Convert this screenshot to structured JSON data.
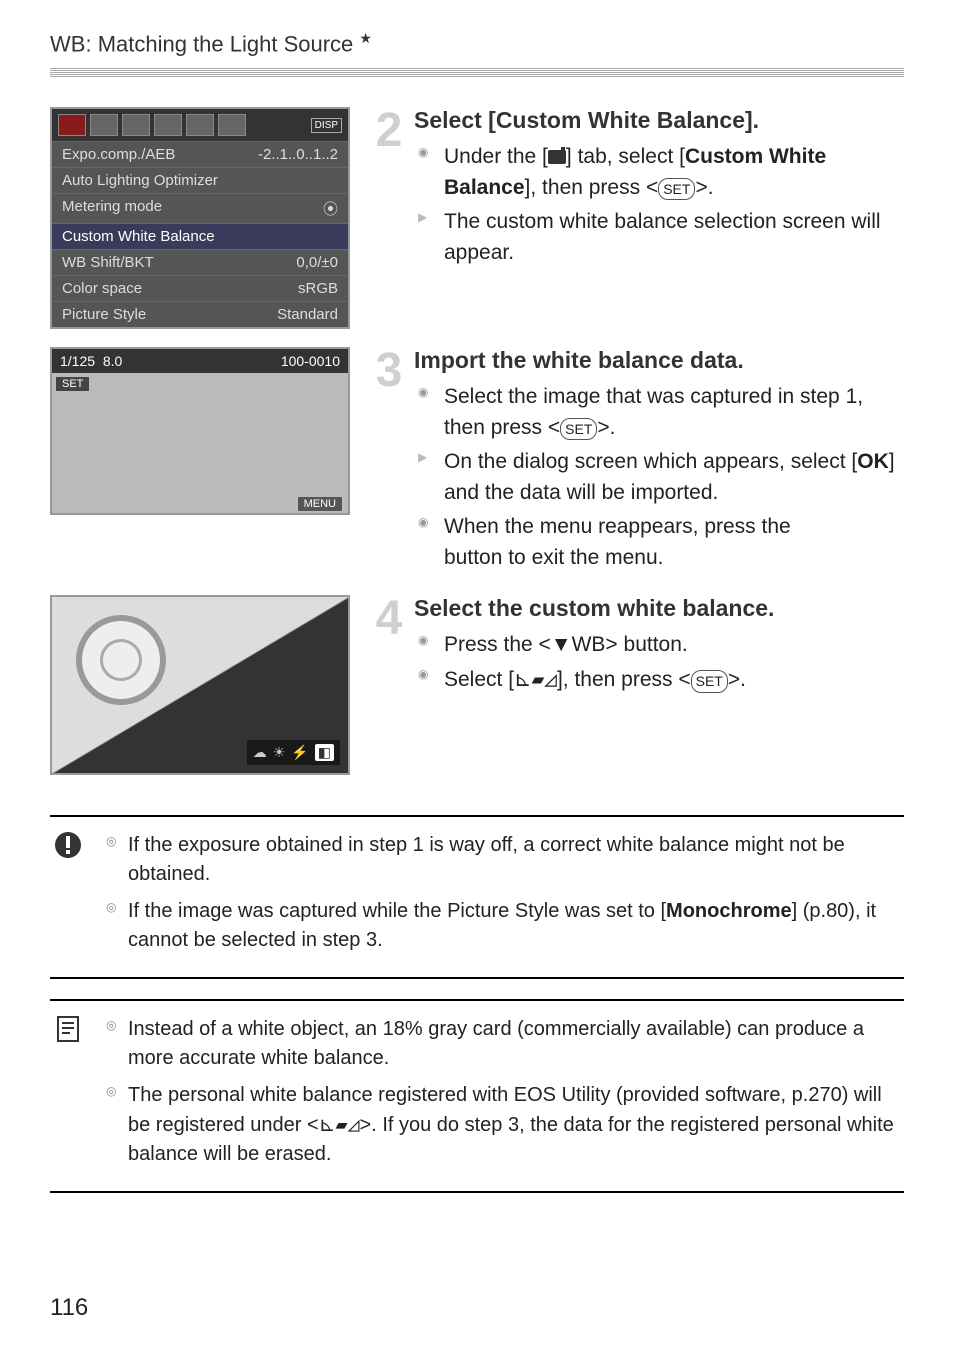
{
  "header": {
    "prefix": "WB",
    "title": "Matching the Light Source",
    "star": "★"
  },
  "menu_screenshot": {
    "tabs_disp": "DISP",
    "rows": [
      {
        "label": "Expo.comp./AEB",
        "value": "-2..1..0..1..2"
      },
      {
        "label": "Auto Lighting Optimizer",
        "value": ""
      },
      {
        "label": "Metering mode",
        "value": "⦿"
      },
      {
        "label": "Custom White Balance",
        "value": "",
        "highlight": true
      },
      {
        "label": "WB Shift/BKT",
        "value": "0,0/±0"
      },
      {
        "label": "Color space",
        "value": "sRGB"
      },
      {
        "label": "Picture Style",
        "value": "Standard"
      }
    ]
  },
  "review_screenshot": {
    "shutter": "1/125",
    "aperture": "8.0",
    "file": "100-0010",
    "set_label": "SET",
    "menu_label": "MENU"
  },
  "steps": [
    {
      "num": "2",
      "title": "Select [Custom White Balance].",
      "items": [
        {
          "type": "dot",
          "html": "Under the [{CAM}] tab, select [<b>Custom White Balance</b>], then press <{SET}>."
        },
        {
          "type": "arrow",
          "html": "The custom white balance selection screen will appear."
        }
      ]
    },
    {
      "num": "3",
      "title": "Import the white balance data.",
      "items": [
        {
          "type": "dot",
          "html": "Select the image that was captured in step 1, then press <{SET}>."
        },
        {
          "type": "arrow",
          "html": "On the dialog screen which appears, select [<b>OK</b>] and the data will be imported."
        },
        {
          "type": "dot",
          "html": "When the menu reappears, press the <MENU> button to exit the menu."
        }
      ]
    },
    {
      "num": "4",
      "title": "Select the custom white balance.",
      "items": [
        {
          "type": "dot",
          "html": "Press the <▼WB> button."
        },
        {
          "type": "dot",
          "html": "Select [<span class='cwbicon'>⊾▰◿</span>], then press <{SET}>."
        }
      ]
    }
  ],
  "caution": {
    "icon": "❗",
    "items": [
      "If the exposure obtained in step 1 is way off, a correct white balance might not be obtained.",
      "If the image was captured while the Picture Style was set to [<b>Monochrome</b>] (p.80), it cannot be selected in step 3."
    ]
  },
  "note": {
    "icon": "🗒",
    "items": [
      "Instead of a white object, an 18% gray card (commercially available) can produce a more accurate white balance.",
      "The personal white balance registered with EOS Utility (provided software, p.270) will be registered under <<span class='cwbicon'>⊾▰◿</span>>. If you do step 3, the data for the registered personal white balance will be erased."
    ]
  },
  "page_number": "116",
  "wb_strip": [
    "☁",
    "☀",
    "⚡",
    "◧"
  ],
  "colors": {
    "text": "#222222",
    "step_num": "#cfcfcf",
    "menu_bg": "#555555"
  }
}
